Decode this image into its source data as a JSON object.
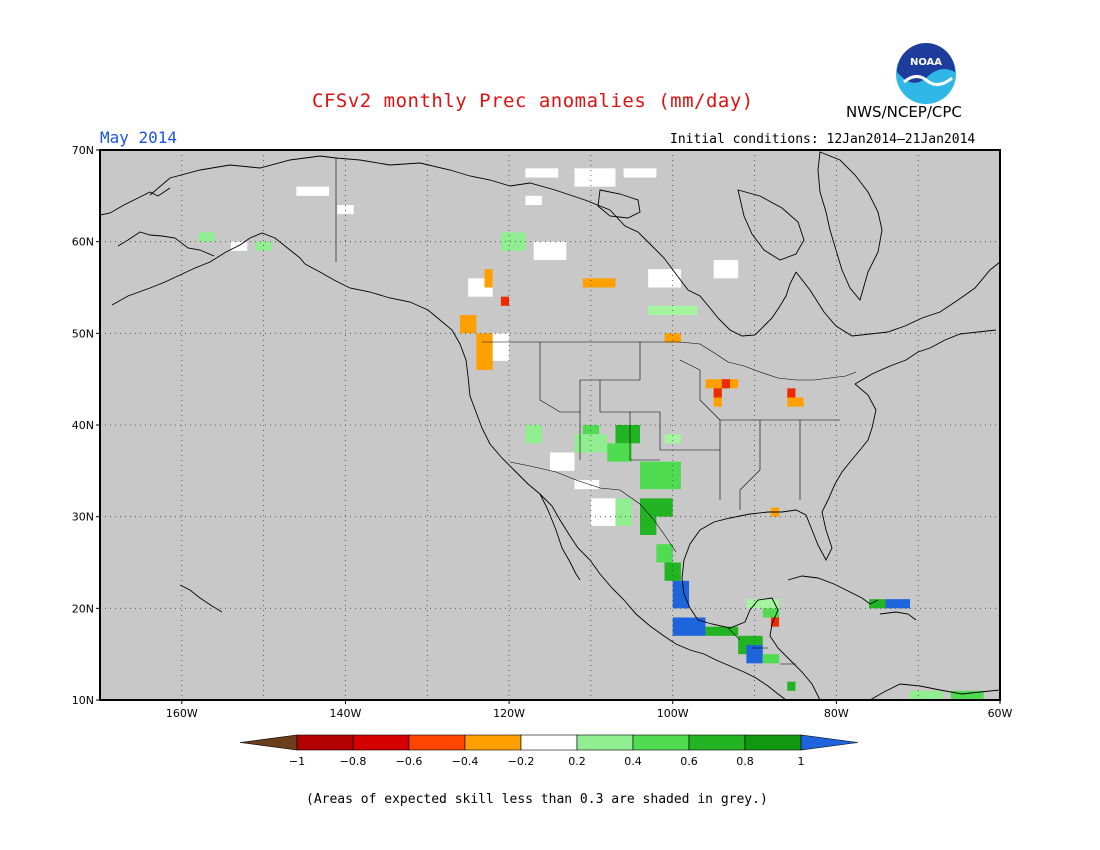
{
  "title": "CFSv2 monthly Prec anomalies (mm/day)",
  "target_month": "May 2014",
  "initial_conditions": "Initial conditions: 12Jan2014–21Jan2014",
  "agency": "NWS/NCEP/CPC",
  "logo_text": "NOAA",
  "caption": "(Areas of expected skill less than 0.3 are shaded in grey.)",
  "colors": {
    "land_grey": "#c8c8c8",
    "title_red": "#e01010",
    "month_blue": "#1a55e0"
  },
  "map": {
    "lon_range": [
      -170,
      -60
    ],
    "lat_range": [
      10,
      70
    ],
    "lat_ticks": [
      "70N",
      "60N",
      "50N",
      "40N",
      "30N",
      "20N",
      "10N"
    ],
    "lon_ticks": [
      "160W",
      "140W",
      "120W",
      "100W",
      "80W",
      "60W"
    ],
    "grid": true
  },
  "legend": {
    "labels": [
      "−1",
      "−0.8",
      "−0.6",
      "−0.4",
      "−0.2",
      "0.2",
      "0.4",
      "0.6",
      "0.8",
      "1"
    ],
    "colors": [
      "#6b3f1c",
      "#b30000",
      "#d40000",
      "#ff4500",
      "#ffa000",
      "#ffffff",
      "#90ee90",
      "#50dc50",
      "#22b422",
      "#109810",
      "#1e64dc"
    ]
  },
  "anomaly_cells": [
    {
      "lon": -112,
      "lat": 66,
      "w": 5,
      "h": 2,
      "v": "0"
    },
    {
      "lon": -118,
      "lat": 67,
      "w": 4,
      "h": 1,
      "v": "0"
    },
    {
      "lon": -106,
      "lat": 67,
      "w": 4,
      "h": 1,
      "v": "0"
    },
    {
      "lon": -146,
      "lat": 65,
      "w": 4,
      "h": 1,
      "v": "0"
    },
    {
      "lon": -141,
      "lat": 63,
      "w": 2,
      "h": 1,
      "v": "0"
    },
    {
      "lon": -118,
      "lat": 64,
      "w": 2,
      "h": 1,
      "v": "0"
    },
    {
      "lon": -121,
      "lat": 59,
      "w": 3,
      "h": 2,
      "v": "0.4"
    },
    {
      "lon": -117,
      "lat": 58,
      "w": 4,
      "h": 2,
      "v": "0"
    },
    {
      "lon": -125,
      "lat": 54,
      "w": 3,
      "h": 2,
      "v": "0"
    },
    {
      "lon": -123,
      "lat": 55,
      "w": 1,
      "h": 2,
      "v": "-0.4"
    },
    {
      "lon": -121,
      "lat": 53,
      "w": 1,
      "h": 1,
      "v": "-0.6"
    },
    {
      "lon": -111,
      "lat": 55,
      "w": 4,
      "h": 1,
      "v": "-0.4"
    },
    {
      "lon": -103,
      "lat": 55,
      "w": 4,
      "h": 2,
      "v": "0"
    },
    {
      "lon": -95,
      "lat": 56,
      "w": 3,
      "h": 2,
      "v": "0"
    },
    {
      "lon": -103,
      "lat": 52,
      "w": 6,
      "h": 1,
      "v": "0.2"
    },
    {
      "lon": -101,
      "lat": 49,
      "w": 2,
      "h": 1,
      "v": "-0.4"
    },
    {
      "lon": -126,
      "lat": 50,
      "w": 2,
      "h": 2,
      "v": "-0.4"
    },
    {
      "lon": -124,
      "lat": 46,
      "w": 2,
      "h": 4,
      "v": "-0.4"
    },
    {
      "lon": -122,
      "lat": 47,
      "w": 2,
      "h": 3,
      "v": "0"
    },
    {
      "lon": -96,
      "lat": 44,
      "w": 4,
      "h": 1,
      "v": "-0.4"
    },
    {
      "lon": -94,
      "lat": 44,
      "w": 1,
      "h": 1,
      "v": "-0.6"
    },
    {
      "lon": -95,
      "lat": 43,
      "w": 1,
      "h": 1,
      "v": "-0.6"
    },
    {
      "lon": -95,
      "lat": 42,
      "w": 1,
      "h": 1,
      "v": "-0.4"
    },
    {
      "lon": -86,
      "lat": 43,
      "w": 1,
      "h": 1,
      "v": "-0.6"
    },
    {
      "lon": -86,
      "lat": 42,
      "w": 2,
      "h": 1,
      "v": "-0.4"
    },
    {
      "lon": -118,
      "lat": 38,
      "w": 2,
      "h": 2,
      "v": "0.4"
    },
    {
      "lon": -111,
      "lat": 39,
      "w": 2,
      "h": 1,
      "v": "0.6"
    },
    {
      "lon": -112,
      "lat": 37,
      "w": 4,
      "h": 2,
      "v": "0.4"
    },
    {
      "lon": -107,
      "lat": 38,
      "w": 3,
      "h": 2,
      "v": "0.8"
    },
    {
      "lon": -108,
      "lat": 36,
      "w": 3,
      "h": 2,
      "v": "0.6"
    },
    {
      "lon": -101,
      "lat": 38,
      "w": 2,
      "h": 1,
      "v": "0.2"
    },
    {
      "lon": -115,
      "lat": 35,
      "w": 3,
      "h": 2,
      "v": "0"
    },
    {
      "lon": -112,
      "lat": 33,
      "w": 3,
      "h": 1,
      "v": "0"
    },
    {
      "lon": -104,
      "lat": 33,
      "w": 5,
      "h": 3,
      "v": "0.6"
    },
    {
      "lon": -104,
      "lat": 30,
      "w": 4,
      "h": 2,
      "v": "0.8"
    },
    {
      "lon": -110,
      "lat": 29,
      "w": 3,
      "h": 3,
      "v": "0"
    },
    {
      "lon": -107,
      "lat": 29,
      "w": 2,
      "h": 3,
      "v": "0.4"
    },
    {
      "lon": -104,
      "lat": 28,
      "w": 2,
      "h": 2,
      "v": "0.8"
    },
    {
      "lon": -102,
      "lat": 25,
      "w": 2,
      "h": 2,
      "v": "0.6"
    },
    {
      "lon": -101,
      "lat": 23,
      "w": 2,
      "h": 2,
      "v": "0.8"
    },
    {
      "lon": -100,
      "lat": 20,
      "w": 2,
      "h": 3,
      "v": "1"
    },
    {
      "lon": -100,
      "lat": 17,
      "w": 4,
      "h": 2,
      "v": "1"
    },
    {
      "lon": -96,
      "lat": 17,
      "w": 4,
      "h": 1,
      "v": "0.8"
    },
    {
      "lon": -92,
      "lat": 15,
      "w": 3,
      "h": 2,
      "v": "0.8"
    },
    {
      "lon": -91,
      "lat": 14,
      "w": 2,
      "h": 2,
      "v": "1"
    },
    {
      "lon": -89,
      "lat": 14,
      "w": 2,
      "h": 1,
      "v": "0.6"
    },
    {
      "lon": -91,
      "lat": 20,
      "w": 4,
      "h": 1,
      "v": "0.2"
    },
    {
      "lon": -89,
      "lat": 19,
      "w": 2,
      "h": 1,
      "v": "0.6"
    },
    {
      "lon": -88,
      "lat": 18,
      "w": 1,
      "h": 1,
      "v": "-0.6"
    },
    {
      "lon": -86,
      "lat": 11,
      "w": 1,
      "h": 1,
      "v": "0.8"
    },
    {
      "lon": -74,
      "lat": 20,
      "w": 3,
      "h": 1,
      "v": "1"
    },
    {
      "lon": -76,
      "lat": 20,
      "w": 2,
      "h": 1,
      "v": "0.8"
    },
    {
      "lon": -71,
      "lat": 10,
      "w": 4,
      "h": 1,
      "v": "0.4"
    },
    {
      "lon": -66,
      "lat": 10,
      "w": 4,
      "h": 1,
      "v": "0.6"
    },
    {
      "lon": -88,
      "lat": 30,
      "w": 1,
      "h": 1,
      "v": "-0.4"
    },
    {
      "lon": -158,
      "lat": 60,
      "w": 2,
      "h": 1,
      "v": "0.4"
    },
    {
      "lon": -151,
      "lat": 59,
      "w": 2,
      "h": 1,
      "v": "0.4"
    },
    {
      "lon": -154,
      "lat": 59,
      "w": 2,
      "h": 1,
      "v": "0"
    }
  ]
}
